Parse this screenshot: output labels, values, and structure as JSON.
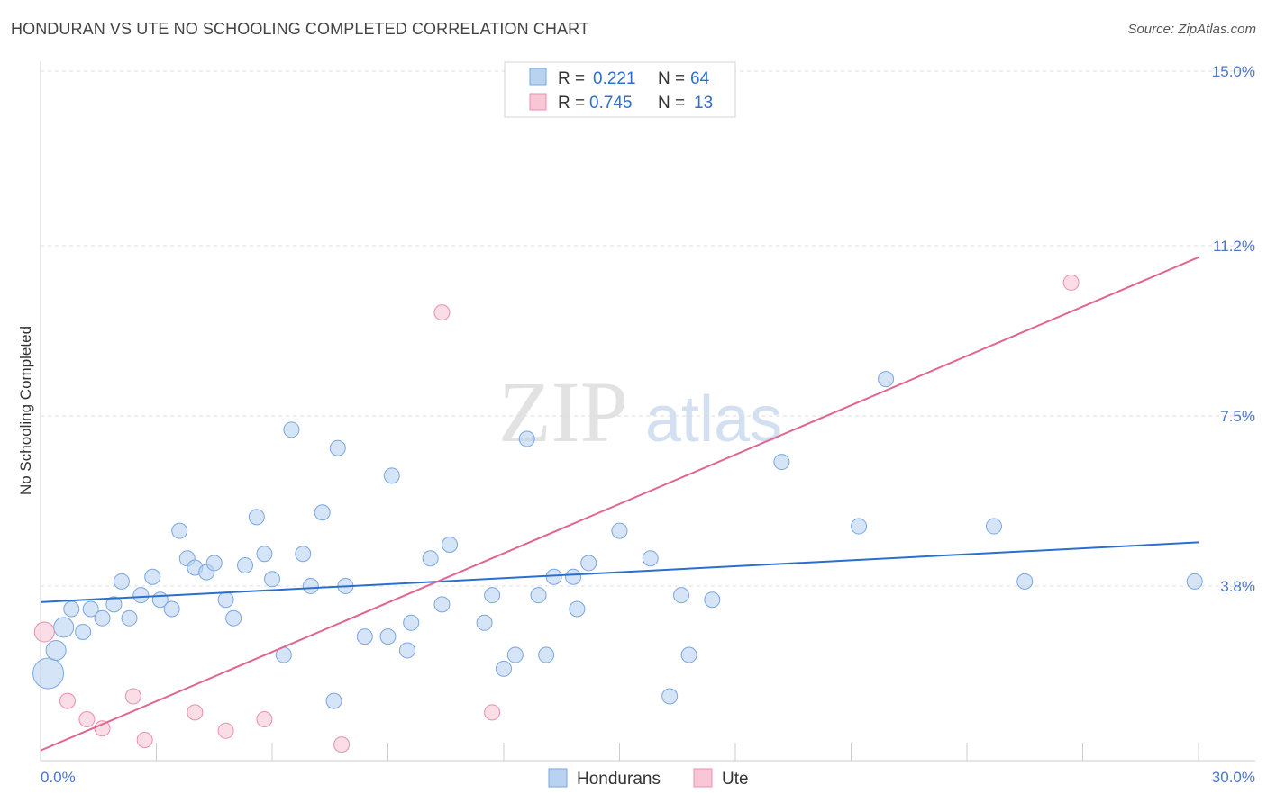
{
  "header": {
    "title": "HONDURAN VS UTE NO SCHOOLING COMPLETED CORRELATION CHART",
    "source": "Source: ZipAtlas.com"
  },
  "watermark": {
    "zip": "ZIP",
    "atlas": "atlas"
  },
  "colors": {
    "hondurans_fill": "#b9d2f2",
    "hondurans_stroke": "#7aa6e0",
    "hondurans_line": "#2a6fcf",
    "ute_fill": "#f9c6d6",
    "ute_stroke": "#e98fae",
    "ute_line": "#e0668f",
    "grid": "#dddddd",
    "tick_text": "#4a78c8"
  },
  "legend": {
    "rows": [
      {
        "r_label": "R =",
        "r_value": "0.221",
        "n_label": "N =",
        "n_value": "64"
      },
      {
        "r_label": "R =",
        "r_value": "0.745",
        "n_label": "N =",
        "n_value": "13"
      }
    ]
  },
  "chart_data": {
    "type": "scatter",
    "title": "HONDURAN VS UTE NO SCHOOLING COMPLETED CORRELATION CHART",
    "xlabel": "",
    "ylabel": "No Schooling Completed",
    "xlim": [
      0,
      30
    ],
    "ylim": [
      0,
      15
    ],
    "x_tick_labels": [
      "0.0%",
      "30.0%"
    ],
    "y_ticks": [
      3.8,
      7.5,
      11.2,
      15.0
    ],
    "y_tick_labels": [
      "3.8%",
      "7.5%",
      "11.2%",
      "15.0%"
    ],
    "grid": "horizontal dashed",
    "legend_position": "top-center and bottom",
    "series": [
      {
        "name": "Hondurans",
        "r": 0.221,
        "n": 64,
        "trend": {
          "x": [
            0,
            30
          ],
          "y": [
            3.45,
            4.75
          ]
        },
        "points": [
          {
            "x": 0.2,
            "y": 1.9,
            "s": 3
          },
          {
            "x": 0.4,
            "y": 2.4,
            "s": 2
          },
          {
            "x": 0.6,
            "y": 2.9,
            "s": 2
          },
          {
            "x": 0.8,
            "y": 3.3,
            "s": 1
          },
          {
            "x": 1.1,
            "y": 2.8,
            "s": 1
          },
          {
            "x": 1.3,
            "y": 3.3,
            "s": 1
          },
          {
            "x": 1.6,
            "y": 3.1,
            "s": 1
          },
          {
            "x": 1.9,
            "y": 3.4,
            "s": 1
          },
          {
            "x": 2.1,
            "y": 3.9,
            "s": 1
          },
          {
            "x": 2.3,
            "y": 3.1,
            "s": 1
          },
          {
            "x": 2.6,
            "y": 3.6,
            "s": 1
          },
          {
            "x": 2.9,
            "y": 4.0,
            "s": 1
          },
          {
            "x": 3.1,
            "y": 3.5,
            "s": 1
          },
          {
            "x": 3.4,
            "y": 3.3,
            "s": 1
          },
          {
            "x": 3.6,
            "y": 5.0,
            "s": 1
          },
          {
            "x": 3.8,
            "y": 4.4,
            "s": 1
          },
          {
            "x": 4.0,
            "y": 4.2,
            "s": 1
          },
          {
            "x": 4.3,
            "y": 4.1,
            "s": 1
          },
          {
            "x": 4.5,
            "y": 4.3,
            "s": 1
          },
          {
            "x": 4.8,
            "y": 3.5,
            "s": 1
          },
          {
            "x": 5.0,
            "y": 3.1,
            "s": 1
          },
          {
            "x": 5.3,
            "y": 4.25,
            "s": 1
          },
          {
            "x": 5.6,
            "y": 5.3,
            "s": 1
          },
          {
            "x": 5.8,
            "y": 4.5,
            "s": 1
          },
          {
            "x": 6.0,
            "y": 3.95,
            "s": 1
          },
          {
            "x": 6.3,
            "y": 2.3,
            "s": 1
          },
          {
            "x": 6.5,
            "y": 7.2,
            "s": 1
          },
          {
            "x": 6.8,
            "y": 4.5,
            "s": 1
          },
          {
            "x": 7.0,
            "y": 3.8,
            "s": 1
          },
          {
            "x": 7.3,
            "y": 5.4,
            "s": 1
          },
          {
            "x": 7.6,
            "y": 1.3,
            "s": 1
          },
          {
            "x": 7.7,
            "y": 6.8,
            "s": 1
          },
          {
            "x": 7.9,
            "y": 3.8,
            "s": 1
          },
          {
            "x": 8.4,
            "y": 2.7,
            "s": 1
          },
          {
            "x": 9.0,
            "y": 2.7,
            "s": 1
          },
          {
            "x": 9.1,
            "y": 6.2,
            "s": 1
          },
          {
            "x": 9.5,
            "y": 2.4,
            "s": 1
          },
          {
            "x": 9.6,
            "y": 3.0,
            "s": 1
          },
          {
            "x": 10.1,
            "y": 4.4,
            "s": 1
          },
          {
            "x": 10.4,
            "y": 3.4,
            "s": 1
          },
          {
            "x": 10.6,
            "y": 4.7,
            "s": 1
          },
          {
            "x": 11.5,
            "y": 3.0,
            "s": 1
          },
          {
            "x": 11.7,
            "y": 3.6,
            "s": 1
          },
          {
            "x": 12.0,
            "y": 2.0,
            "s": 1
          },
          {
            "x": 12.3,
            "y": 2.3,
            "s": 1
          },
          {
            "x": 12.6,
            "y": 7.0,
            "s": 1
          },
          {
            "x": 12.9,
            "y": 3.6,
            "s": 1
          },
          {
            "x": 13.1,
            "y": 2.3,
            "s": 1
          },
          {
            "x": 13.3,
            "y": 4.0,
            "s": 1
          },
          {
            "x": 13.8,
            "y": 4.0,
            "s": 1
          },
          {
            "x": 13.9,
            "y": 3.3,
            "s": 1
          },
          {
            "x": 14.2,
            "y": 4.3,
            "s": 1
          },
          {
            "x": 15.0,
            "y": 5.0,
            "s": 1
          },
          {
            "x": 15.8,
            "y": 4.4,
            "s": 1
          },
          {
            "x": 16.3,
            "y": 1.4,
            "s": 1
          },
          {
            "x": 16.6,
            "y": 3.6,
            "s": 1
          },
          {
            "x": 16.8,
            "y": 2.3,
            "s": 1
          },
          {
            "x": 17.4,
            "y": 3.5,
            "s": 1
          },
          {
            "x": 19.2,
            "y": 6.5,
            "s": 1
          },
          {
            "x": 21.2,
            "y": 5.1,
            "s": 1
          },
          {
            "x": 21.9,
            "y": 8.3,
            "s": 1
          },
          {
            "x": 24.7,
            "y": 5.1,
            "s": 1
          },
          {
            "x": 25.5,
            "y": 3.9,
            "s": 1
          },
          {
            "x": 29.9,
            "y": 3.9,
            "s": 1
          }
        ]
      },
      {
        "name": "Ute",
        "r": 0.745,
        "n": 13,
        "trend": {
          "x": [
            0,
            30
          ],
          "y": [
            0.22,
            10.95
          ]
        },
        "points": [
          {
            "x": 0.1,
            "y": 2.8,
            "s": 2
          },
          {
            "x": 0.7,
            "y": 1.3,
            "s": 1
          },
          {
            "x": 1.2,
            "y": 0.9,
            "s": 1
          },
          {
            "x": 1.6,
            "y": 0.7,
            "s": 1
          },
          {
            "x": 2.4,
            "y": 1.4,
            "s": 1
          },
          {
            "x": 2.7,
            "y": 0.45,
            "s": 1
          },
          {
            "x": 4.0,
            "y": 1.05,
            "s": 1
          },
          {
            "x": 4.8,
            "y": 0.65,
            "s": 1
          },
          {
            "x": 5.8,
            "y": 0.9,
            "s": 1
          },
          {
            "x": 7.8,
            "y": 0.35,
            "s": 1
          },
          {
            "x": 10.4,
            "y": 9.75,
            "s": 1
          },
          {
            "x": 11.7,
            "y": 1.05,
            "s": 1
          },
          {
            "x": 26.7,
            "y": 10.4,
            "s": 1
          }
        ]
      }
    ]
  }
}
